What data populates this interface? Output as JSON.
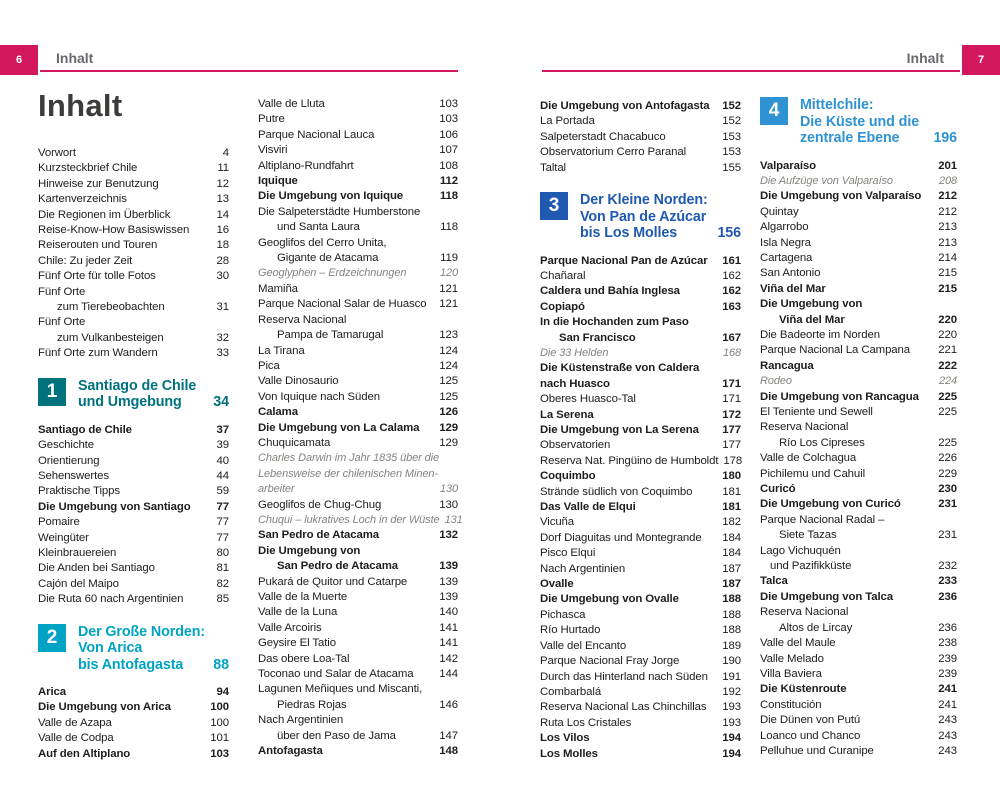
{
  "accent_color": "#d2175e",
  "page_header": {
    "left_folio": "6",
    "right_folio": "7",
    "running_title_left": "Inhalt",
    "running_title_right": "Inhalt"
  },
  "main_title": "Inhalt",
  "section_colors": {
    "s1": "#00727e",
    "s2": "#00a3c3",
    "s3": "#2059b0",
    "s4": "#2f93d3"
  },
  "columns": {
    "p6c1": {
      "rows": [
        {
          "text": "Vorwort",
          "page": "4"
        },
        {
          "text": "Kurzsteckbrief Chile",
          "page": "11"
        },
        {
          "text": "Hinweise zur Benutzung",
          "page": "12"
        },
        {
          "text": "Kartenverzeichnis",
          "page": "13"
        },
        {
          "text": "Die Regionen im Überblick",
          "page": "14"
        },
        {
          "text": "Reise-Know-How Basiswissen",
          "page": "16"
        },
        {
          "text": "Reiserouten und Touren",
          "page": "18"
        },
        {
          "text": "Chile: Zu jeder Zeit",
          "page": "28"
        },
        {
          "text": "Fünf Orte für tolle Fotos",
          "page": "30"
        },
        {
          "text": "Fünf Orte",
          "page": ""
        },
        {
          "text": "zum Tierebeobachten",
          "page": "31",
          "indent": true
        },
        {
          "text": "Fünf Orte",
          "page": ""
        },
        {
          "text": "zum Vulkanbesteigen",
          "page": "32",
          "indent": true
        },
        {
          "text": "Fünf Orte zum Wandern",
          "page": "33"
        },
        {
          "section": {
            "num": "1",
            "color_key": "s1",
            "lines": [
              "Santiago de Chile",
              "und Umgebung"
            ],
            "page": "34"
          }
        },
        {
          "text": "Santiago de Chile",
          "page": "37",
          "bold": true
        },
        {
          "text": "Geschichte",
          "page": "39"
        },
        {
          "text": "Orientierung",
          "page": "40"
        },
        {
          "text": "Sehenswertes",
          "page": "44"
        },
        {
          "text": "Praktische Tipps",
          "page": "59"
        },
        {
          "text": "Die Umgebung von Santiago",
          "page": "77",
          "bold": true
        },
        {
          "text": "Pomaire",
          "page": "77"
        },
        {
          "text": "Weingüter",
          "page": "77"
        },
        {
          "text": "Kleinbrauereien",
          "page": "80"
        },
        {
          "text": "Die Anden bei Santiago",
          "page": "81"
        },
        {
          "text": "Cajón del Maipo",
          "page": "82"
        },
        {
          "text": "Die Ruta 60 nach Argentinien",
          "page": "85"
        },
        {
          "section": {
            "num": "2",
            "color_key": "s2",
            "lines": [
              "Der Große Norden:",
              "Von Arica",
              "bis Antofagasta"
            ],
            "page": "88"
          }
        },
        {
          "text": "Arica",
          "page": "94",
          "bold": true
        },
        {
          "text": "Die Umgebung von Arica",
          "page": "100",
          "bold": true
        },
        {
          "text": "Valle de Azapa",
          "page": "100"
        },
        {
          "text": "Valle de Codpa",
          "page": "101"
        },
        {
          "text": "Auf den Altiplano",
          "page": "103",
          "bold": true
        }
      ]
    },
    "p6c2": {
      "rows": [
        {
          "text": "Valle de Lluta",
          "page": "103"
        },
        {
          "text": "Putre",
          "page": "103"
        },
        {
          "text": "Parque Nacional Lauca",
          "page": "106"
        },
        {
          "text": "Visviri",
          "page": "107"
        },
        {
          "text": "Altiplano-Rundfahrt",
          "page": "108"
        },
        {
          "text": "Iquique",
          "page": "112",
          "bold": true
        },
        {
          "text": "Die Umgebung von Iquique",
          "page": "118",
          "bold": true
        },
        {
          "text": "Die Salpeterstädte Humberstone",
          "page": ""
        },
        {
          "text": "und Santa Laura",
          "page": "118",
          "indent": true
        },
        {
          "text": "Geoglifos del Cerro Unita,",
          "page": ""
        },
        {
          "text": "Gigante de Atacama",
          "page": "119",
          "indent": true
        },
        {
          "text": "Geoglyphen – Erdzeichnungen",
          "page": "120",
          "italic": true
        },
        {
          "text": "Mamiña",
          "page": "121"
        },
        {
          "text": "Parque Nacional Salar de Huasco",
          "page": "121"
        },
        {
          "text": "Reserva Nacional",
          "page": ""
        },
        {
          "text": "Pampa de Tamarugal",
          "page": "123",
          "indent": true
        },
        {
          "text": "La Tirana",
          "page": "124"
        },
        {
          "text": "Pica",
          "page": "124"
        },
        {
          "text": "Valle Dinosaurio",
          "page": "125"
        },
        {
          "text": "Von Iquique nach Süden",
          "page": "125"
        },
        {
          "text": "Calama",
          "page": "126",
          "bold": true
        },
        {
          "text": "Die Umgebung von La Calama",
          "page": "129",
          "bold": true
        },
        {
          "text": "Chuquicamata",
          "page": "129"
        },
        {
          "text": "Charles Darwin im Jahr 1835 über die",
          "page": "",
          "italic": true
        },
        {
          "text": "Lebensweise der chilenischen Minen-",
          "page": "",
          "italic": true
        },
        {
          "text": "arbeiter",
          "page": "130",
          "italic": true
        },
        {
          "text": "Geoglifos de Chug-Chug",
          "page": "130"
        },
        {
          "text": "Chuqui – lukratives Loch in der Wüste",
          "page": "131",
          "italic": true
        },
        {
          "text": "San Pedro de Atacama",
          "page": "132",
          "bold": true
        },
        {
          "text": "Die Umgebung von",
          "page": "",
          "bold": true
        },
        {
          "text": "San Pedro de Atacama",
          "page": "139",
          "bold": true,
          "indent": true
        },
        {
          "text": "Pukará de Quitor und Catarpe",
          "page": "139"
        },
        {
          "text": "Valle de la Muerte",
          "page": "139"
        },
        {
          "text": "Valle de la Luna",
          "page": "140"
        },
        {
          "text": "Valle Arcoiris",
          "page": "141"
        },
        {
          "text": "Geysire El Tatio",
          "page": "141"
        },
        {
          "text": "Das obere Loa-Tal",
          "page": "142"
        },
        {
          "text": "Toconao und Salar de Atacama",
          "page": "144"
        },
        {
          "text": "Lagunen Meñiques und Miscanti,",
          "page": ""
        },
        {
          "text": "Piedras Rojas",
          "page": "146",
          "indent": true
        },
        {
          "text": "Nach Argentinien",
          "page": ""
        },
        {
          "text": "über den Paso de Jama",
          "page": "147",
          "indent": true
        },
        {
          "text": "Antofagasta",
          "page": "148",
          "bold": true
        }
      ]
    },
    "p7c1": {
      "rows": [
        {
          "text": "Die Umgebung von Antofagasta",
          "page": "152",
          "bold": true
        },
        {
          "text": "La Portada",
          "page": "152"
        },
        {
          "text": "Salpeterstadt Chacabuco",
          "page": "153"
        },
        {
          "text": "Observatorium Cerro Paranal",
          "page": "153"
        },
        {
          "text": "Taltal",
          "page": "155"
        },
        {
          "section": {
            "num": "3",
            "color_key": "s3",
            "lines": [
              "Der Kleine Norden:",
              "Von Pan de Azúcar",
              "bis Los Molles"
            ],
            "page": "156"
          }
        },
        {
          "text": "Parque Nacional Pan de Azúcar",
          "page": "161",
          "bold": true
        },
        {
          "text": "Chañaral",
          "page": "162"
        },
        {
          "text": "Caldera und Bahía Inglesa",
          "page": "162",
          "bold": true
        },
        {
          "text": "Copiapó",
          "page": "163",
          "bold": true
        },
        {
          "text": "In die Hochanden zum Paso",
          "page": "",
          "bold": true
        },
        {
          "text": "San Francisco",
          "page": "167",
          "bold": true,
          "indent": true
        },
        {
          "text": "Die 33 Helden",
          "page": "168",
          "italic": true
        },
        {
          "text": "Die Küstenstraße von Caldera",
          "page": "",
          "bold": true
        },
        {
          "text": "nach Huasco",
          "page": "171",
          "bold": true
        },
        {
          "text": "Oberes Huasco-Tal",
          "page": "171"
        },
        {
          "text": "La Serena",
          "page": "172",
          "bold": true
        },
        {
          "text": "Die Umgebung von La Serena",
          "page": "177",
          "bold": true
        },
        {
          "text": "Observatorien",
          "page": "177"
        },
        {
          "text": "Reserva Nat. Pingüino de Humboldt",
          "page": "178"
        },
        {
          "text": "Coquimbo",
          "page": "180",
          "bold": true
        },
        {
          "text": "Strände südlich von Coquimbo",
          "page": "181"
        },
        {
          "text": "Das Valle de Elqui",
          "page": "181",
          "bold": true
        },
        {
          "text": "Vicuña",
          "page": "182"
        },
        {
          "text": "Dorf Diaguitas und Montegrande",
          "page": "184"
        },
        {
          "text": "Pisco Elqui",
          "page": "184"
        },
        {
          "text": "Nach Argentinien",
          "page": "187"
        },
        {
          "text": "Ovalle",
          "page": "187",
          "bold": true
        },
        {
          "text": "Die Umgebung von Ovalle",
          "page": "188",
          "bold": true
        },
        {
          "text": "Pichasca",
          "page": "188"
        },
        {
          "text": "Río Hurtado",
          "page": "188"
        },
        {
          "text": "Valle del Encanto",
          "page": "189"
        },
        {
          "text": "Parque Nacional Fray Jorge",
          "page": "190"
        },
        {
          "text": "Durch das Hinterland nach Süden",
          "page": "191"
        },
        {
          "text": "Combarbalá",
          "page": "192"
        },
        {
          "text": "Reserva Nacional Las Chinchillas",
          "page": "193"
        },
        {
          "text": "Ruta Los Cristales",
          "page": "193"
        },
        {
          "text": "Los Vilos",
          "page": "194",
          "bold": true
        },
        {
          "text": "Los Molles",
          "page": "194",
          "bold": true
        }
      ]
    },
    "p7c2": {
      "rows": [
        {
          "section": {
            "num": "4",
            "color_key": "s4",
            "lines": [
              "Mittelchile:",
              "Die Küste und die",
              "zentrale Ebene"
            ],
            "page": "196"
          }
        },
        {
          "text": "Valparaíso",
          "page": "201",
          "bold": true
        },
        {
          "text": "Die Aufzüge von Valparaíso",
          "page": "208",
          "italic": true
        },
        {
          "text": "Die Umgebung von Valparaíso",
          "page": "212",
          "bold": true
        },
        {
          "text": "Quintay",
          "page": "212"
        },
        {
          "text": "Algarrobo",
          "page": "213"
        },
        {
          "text": "Isla Negra",
          "page": "213"
        },
        {
          "text": "Cartagena",
          "page": "214"
        },
        {
          "text": "San Antonio",
          "page": "215"
        },
        {
          "text": "Viña del Mar",
          "page": "215",
          "bold": true
        },
        {
          "text": "Die Umgebung von",
          "page": "",
          "bold": true
        },
        {
          "text": "Viña del Mar",
          "page": "220",
          "bold": true,
          "indent": true
        },
        {
          "text": "Die Badeorte im Norden",
          "page": "220"
        },
        {
          "text": "Parque Nacional La Campana",
          "page": "221"
        },
        {
          "text": "Rancagua",
          "page": "222",
          "bold": true
        },
        {
          "text": "Rodeo",
          "page": "224",
          "italic": true
        },
        {
          "text": "Die Umgebung von Rancagua",
          "page": "225",
          "bold": true
        },
        {
          "text": "El Teniente und Sewell",
          "page": "225"
        },
        {
          "text": "Reserva Nacional",
          "page": ""
        },
        {
          "text": "Río Los Cipreses",
          "page": "225",
          "indent": true
        },
        {
          "text": "Valle de Colchagua",
          "page": "226"
        },
        {
          "text": "Pichilemu und Cahuil",
          "page": "229"
        },
        {
          "text": "Curicó",
          "page": "230",
          "bold": true
        },
        {
          "text": "Die Umgebung von Curicó",
          "page": "231",
          "bold": true
        },
        {
          "text": "Parque Nacional Radal –",
          "page": ""
        },
        {
          "text": "Siete Tazas",
          "page": "231",
          "indent": true
        },
        {
          "text": "Lago Vichuquén",
          "page": ""
        },
        {
          "text": "und Pazifikküste",
          "page": "232",
          "indent2": true
        },
        {
          "text": "Talca",
          "page": "233",
          "bold": true
        },
        {
          "text": "Die Umgebung von Talca",
          "page": "236",
          "bold": true
        },
        {
          "text": "Reserva Nacional",
          "page": ""
        },
        {
          "text": "Altos de Lircay",
          "page": "236",
          "indent": true
        },
        {
          "text": "Valle del Maule",
          "page": "238"
        },
        {
          "text": "Valle Melado",
          "page": "239"
        },
        {
          "text": "Villa Baviera",
          "page": "239"
        },
        {
          "text": "Die Küstenroute",
          "page": "241",
          "bold": true
        },
        {
          "text": "Constitución",
          "page": "241"
        },
        {
          "text": "Die Dünen von Putú",
          "page": "243"
        },
        {
          "text": "Loanco und Chanco",
          "page": "243"
        },
        {
          "text": "Pelluhue und Curanipe",
          "page": "243"
        }
      ]
    }
  }
}
